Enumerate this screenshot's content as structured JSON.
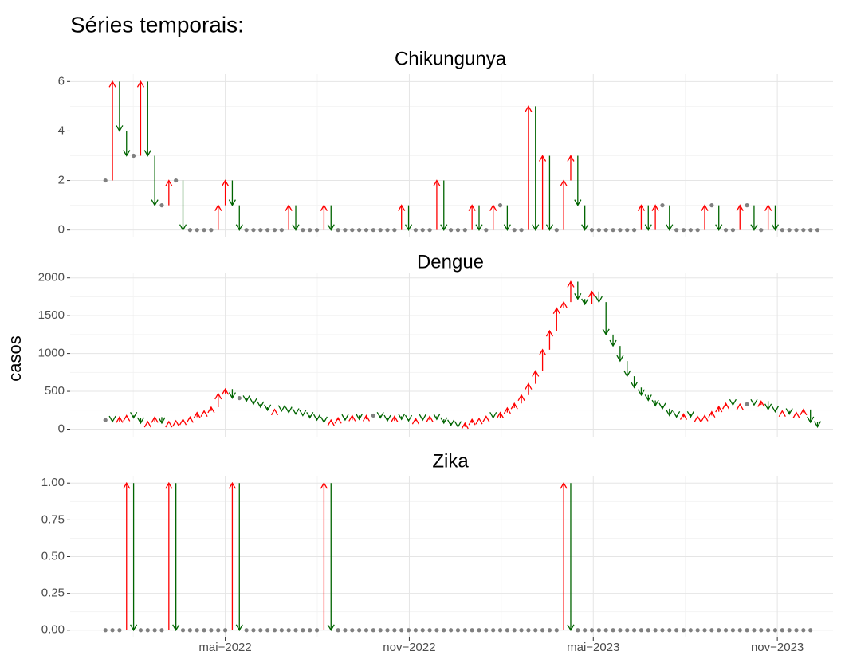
{
  "title": "Séries temporais:",
  "y_label": "casos",
  "up_color": "#ff0000",
  "down_color": "#006400",
  "same_color": "#808080",
  "chart_data": [
    {
      "type": "arrow-series",
      "title": "Chikungunya",
      "x": [
        0,
        1,
        2,
        3,
        4,
        5,
        6,
        7,
        8,
        9,
        10,
        11,
        12,
        13,
        14,
        15,
        16,
        17,
        18,
        19,
        20,
        21,
        22,
        23,
        24,
        25,
        26,
        27,
        28,
        29,
        30,
        31,
        32,
        33,
        34,
        35,
        36,
        37,
        38,
        39,
        40,
        41,
        42,
        43,
        44,
        45,
        46,
        47,
        48,
        49,
        50,
        51,
        52,
        53,
        54,
        55,
        56,
        57,
        58,
        59,
        60,
        61,
        62,
        63,
        64,
        65,
        66,
        67,
        68,
        69,
        70,
        71,
        72,
        73,
        74,
        75,
        76,
        77,
        78,
        79,
        80,
        81,
        82,
        83,
        84,
        85,
        86,
        87,
        88,
        89,
        90,
        91,
        92,
        93,
        94,
        95,
        96,
        97,
        98,
        99,
        100,
        101
      ],
      "values": [
        2,
        6,
        4,
        3,
        3,
        6,
        3,
        1,
        1,
        2,
        2,
        0,
        0,
        0,
        0,
        0,
        1,
        2,
        1,
        0,
        0,
        0,
        0,
        0,
        0,
        0,
        1,
        0,
        0,
        0,
        0,
        1,
        0,
        0,
        0,
        0,
        0,
        0,
        0,
        0,
        0,
        0,
        1,
        0,
        0,
        0,
        0,
        2,
        0,
        0,
        0,
        0,
        1,
        0,
        0,
        1,
        1,
        0,
        0,
        0,
        5,
        0,
        3,
        0,
        0,
        2,
        3,
        1,
        0,
        0,
        0,
        0,
        0,
        0,
        0,
        0,
        1,
        0,
        1,
        1,
        0,
        0,
        0,
        0,
        0,
        1,
        1,
        0,
        0,
        0,
        1,
        1,
        0,
        0,
        1,
        0,
        0,
        0,
        0,
        0,
        0,
        0
      ],
      "ylim": [
        -0.3,
        6.3
      ],
      "yticks": [
        0,
        2,
        4,
        6
      ]
    },
    {
      "type": "arrow-series",
      "title": "Dengue",
      "x": [
        0,
        1,
        2,
        3,
        4,
        5,
        6,
        7,
        8,
        9,
        10,
        11,
        12,
        13,
        14,
        15,
        16,
        17,
        18,
        19,
        20,
        21,
        22,
        23,
        24,
        25,
        26,
        27,
        28,
        29,
        30,
        31,
        32,
        33,
        34,
        35,
        36,
        37,
        38,
        39,
        40,
        41,
        42,
        43,
        44,
        45,
        46,
        47,
        48,
        49,
        50,
        51,
        52,
        53,
        54,
        55,
        56,
        57,
        58,
        59,
        60,
        61,
        62,
        63,
        64,
        65,
        66,
        67,
        68,
        69,
        70,
        71,
        72,
        73,
        74,
        75,
        76,
        77,
        78,
        79,
        80,
        81,
        82,
        83,
        84,
        85,
        86,
        87,
        88,
        89,
        90,
        91,
        92,
        93,
        94,
        95,
        96,
        97,
        98,
        99,
        100,
        101
      ],
      "values": [
        120,
        100,
        160,
        180,
        150,
        80,
        100,
        160,
        80,
        100,
        110,
        130,
        160,
        220,
        240,
        290,
        470,
        530,
        410,
        410,
        370,
        330,
        290,
        250,
        260,
        240,
        220,
        200,
        180,
        150,
        120,
        90,
        120,
        150,
        120,
        180,
        130,
        180,
        180,
        150,
        110,
        170,
        130,
        110,
        140,
        120,
        170,
        130,
        80,
        50,
        30,
        80,
        130,
        140,
        170,
        150,
        220,
        280,
        340,
        450,
        600,
        770,
        1050,
        1300,
        1600,
        1680,
        1950,
        1720,
        1650,
        1820,
        1680,
        1250,
        1100,
        900,
        700,
        550,
        450,
        380,
        310,
        270,
        180,
        160,
        200,
        160,
        170,
        180,
        230,
        300,
        340,
        320,
        330,
        330,
        320,
        370,
        260,
        230,
        240,
        200,
        220,
        260,
        90,
        30
      ],
      "ylim": [
        -100,
        2060
      ],
      "yticks": [
        0,
        500,
        1000,
        1500,
        2000
      ]
    },
    {
      "type": "arrow-series",
      "title": "Zika",
      "x": [
        0,
        1,
        2,
        3,
        4,
        5,
        6,
        7,
        8,
        9,
        10,
        11,
        12,
        13,
        14,
        15,
        16,
        17,
        18,
        19,
        20,
        21,
        22,
        23,
        24,
        25,
        26,
        27,
        28,
        29,
        30,
        31,
        32,
        33,
        34,
        35,
        36,
        37,
        38,
        39,
        40,
        41,
        42,
        43,
        44,
        45,
        46,
        47,
        48,
        49,
        50,
        51,
        52,
        53,
        54,
        55,
        56,
        57,
        58,
        59,
        60,
        61,
        62,
        63,
        64,
        65,
        66,
        67,
        68,
        69,
        70,
        71,
        72,
        73,
        74,
        75,
        76,
        77,
        78,
        79,
        80,
        81,
        82,
        83,
        84,
        85,
        86,
        87,
        88,
        89,
        90,
        91,
        92,
        93,
        94,
        95,
        96,
        97,
        98,
        99,
        100
      ],
      "values": [
        0,
        0,
        0,
        1,
        0,
        0,
        0,
        0,
        0,
        1,
        0,
        0,
        0,
        0,
        0,
        0,
        0,
        0,
        1,
        0,
        0,
        0,
        0,
        0,
        0,
        0,
        0,
        0,
        0,
        0,
        0,
        1,
        0,
        0,
        0,
        0,
        0,
        0,
        0,
        0,
        0,
        0,
        0,
        0,
        0,
        0,
        0,
        0,
        0,
        0,
        0,
        0,
        0,
        0,
        0,
        0,
        0,
        0,
        0,
        0,
        0,
        0,
        0,
        0,
        0,
        1,
        0,
        0,
        0,
        0,
        0,
        0,
        0,
        0,
        0,
        0,
        0,
        0,
        0,
        0,
        0,
        0,
        0,
        0,
        0,
        0,
        0,
        0,
        0,
        0,
        0,
        0,
        0,
        0,
        0,
        0,
        0,
        0,
        0,
        0,
        0
      ],
      "ylim": [
        -0.05,
        1.05
      ],
      "yticks": [
        {
          "value": 0,
          "label": "0.00"
        },
        {
          "value": 0.25,
          "label": "0.25"
        },
        {
          "value": 0.5,
          "label": "0.50"
        },
        {
          "value": 0.75,
          "label": "0.75"
        },
        {
          "value": 1,
          "label": "1.00"
        }
      ],
      "xlim": [
        -5,
        103.2
      ],
      "xticks": [
        {
          "value": 17,
          "label": "mai−2022"
        },
        {
          "value": 43.1,
          "label": "nov−2022"
        },
        {
          "value": 69.2,
          "label": "mai−2023"
        },
        {
          "value": 95.3,
          "label": "nov−2023"
        }
      ]
    }
  ]
}
